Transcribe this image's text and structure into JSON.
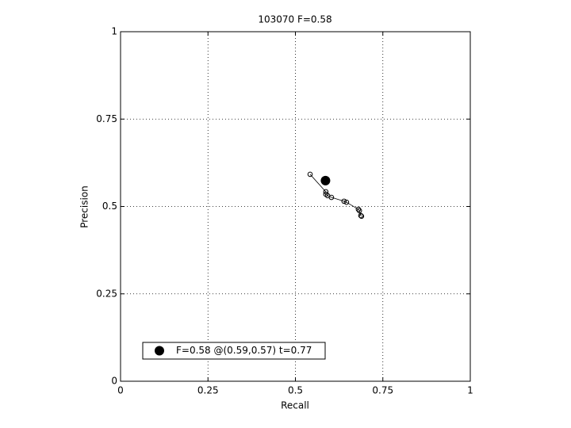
{
  "chart_data": {
    "type": "line",
    "title": "103070 F=0.58",
    "x_label": "Recall",
    "y_label": "Precision",
    "xlim": [
      0,
      1
    ],
    "ylim": [
      0,
      1
    ],
    "xticks": [
      0,
      0.25,
      0.5,
      0.75,
      1
    ],
    "yticks": [
      0,
      0.25,
      0.5,
      0.75,
      1
    ],
    "grid": true,
    "legend_position": "lower-left",
    "series": [
      {
        "color": "#000000",
        "marker": "open-circle",
        "line": true,
        "x": [
          0.542,
          0.587,
          0.587,
          0.592,
          0.603,
          0.639,
          0.646,
          0.68,
          0.683,
          0.687,
          0.689
        ],
        "values": [
          0.592,
          0.542,
          0.535,
          0.531,
          0.526,
          0.515,
          0.512,
          0.492,
          0.488,
          0.474,
          0.472
        ]
      },
      {
        "name": "F=0.58 @(0.59,0.57) t=0.77",
        "color": "#000000",
        "marker": "filled-circle",
        "line": false,
        "x": [
          0.586
        ],
        "values": [
          0.574
        ]
      }
    ]
  }
}
